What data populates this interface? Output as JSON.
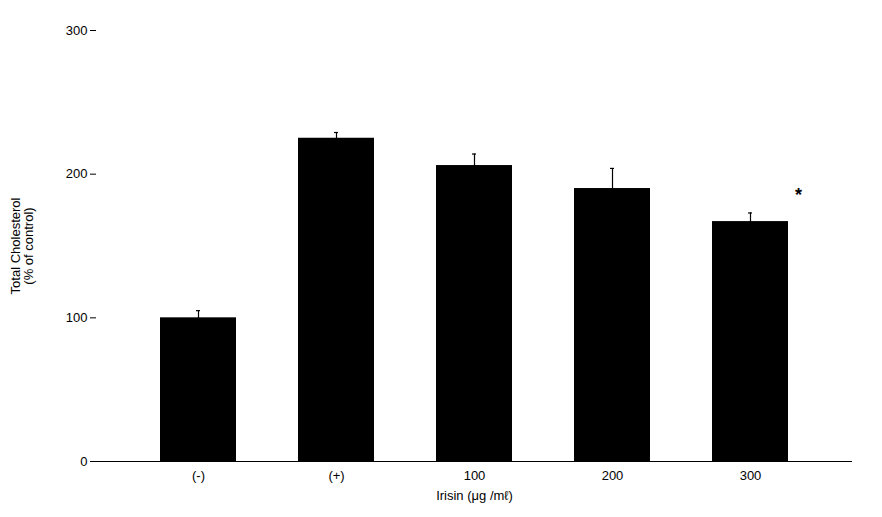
{
  "chart_data": {
    "type": "bar",
    "categories": [
      "(-)",
      "(+)",
      "100",
      "200",
      "300"
    ],
    "values": [
      100,
      225,
      206,
      190,
      167
    ],
    "errors": [
      5,
      4,
      8,
      14,
      6
    ],
    "xlabel": "Irisin (μg /mℓ)",
    "ylabel": "Total Cholesterol\n(% of control)",
    "ylim": [
      0,
      300
    ],
    "yticks": [
      0,
      100,
      200,
      300
    ],
    "grid": false,
    "annotations": [
      {
        "text": "*",
        "x": "300",
        "y": 181
      }
    ]
  }
}
